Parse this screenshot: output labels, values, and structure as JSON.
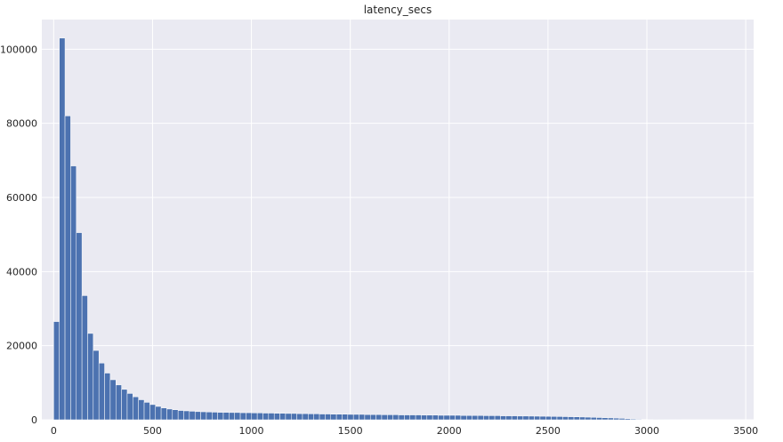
{
  "chart_data": {
    "type": "bar",
    "title": "latency_secs",
    "xlabel": "",
    "ylabel": "",
    "xlim": [
      -60,
      3540
    ],
    "ylim": [
      0,
      108000
    ],
    "x_ticks": [
      0,
      500,
      1000,
      1500,
      2000,
      2500,
      3000,
      3500
    ],
    "x_tick_labels": [
      "0",
      "500",
      "1000",
      "1500",
      "2000",
      "2500",
      "3000",
      "3500"
    ],
    "y_ticks": [
      0,
      20000,
      40000,
      60000,
      80000,
      100000
    ],
    "y_tick_labels": [
      "0",
      "20000",
      "40000",
      "60000",
      "80000",
      "100000"
    ],
    "grid": true,
    "bin_start": 0,
    "bin_width": 28.6,
    "values": [
      26500,
      103000,
      82000,
      68500,
      50500,
      33500,
      23300,
      18700,
      15300,
      12600,
      10800,
      9400,
      8200,
      7100,
      6200,
      5400,
      4700,
      4100,
      3600,
      3200,
      2900,
      2700,
      2500,
      2400,
      2300,
      2200,
      2150,
      2100,
      2050,
      2000,
      2000,
      1950,
      1950,
      1900,
      1900,
      1850,
      1850,
      1800,
      1800,
      1750,
      1750,
      1700,
      1700,
      1650,
      1650,
      1600,
      1600,
      1550,
      1550,
      1500,
      1500,
      1500,
      1450,
      1450,
      1450,
      1400,
      1400,
      1400,
      1350,
      1350,
      1350,
      1300,
      1300,
      1300,
      1300,
      1250,
      1250,
      1250,
      1200,
      1200,
      1200,
      1200,
      1150,
      1150,
      1150,
      1150,
      1100,
      1100,
      1100,
      1050,
      1050,
      1050,
      1000,
      1000,
      980,
      960,
      940,
      920,
      900,
      870,
      840,
      810,
      780,
      740,
      700,
      650,
      600,
      550,
      500,
      450,
      380,
      300,
      220,
      150,
      90,
      50,
      30,
      20,
      15,
      10,
      8,
      5
    ]
  },
  "colors": {
    "bar": "#4c72b0",
    "plot_background": "#eaeaf2",
    "grid": "#ffffff"
  }
}
